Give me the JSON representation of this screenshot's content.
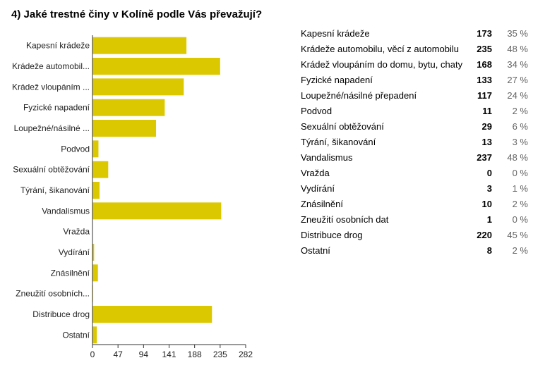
{
  "question": {
    "title": "4) Jaké trestné činy v Kolíně podle Vás převažují?"
  },
  "colors": {
    "bar": "#dcc800",
    "axis": "#333333",
    "text": "#222222",
    "muted": "#666666"
  },
  "chart_data": {
    "type": "bar",
    "orientation": "horizontal",
    "categories": [
      "Kapesní krádeže",
      "Krádeže automobil...",
      "Krádež vloupáním ...",
      "Fyzické napadení",
      "Loupežné/násilné ...",
      "Podvod",
      "Sexuální obtěžování",
      "Týrání, šikanování",
      "Vandalismus",
      "Vražda",
      "Vydírání",
      "Znásilnění",
      "Zneužití osobních...",
      "Distribuce drog",
      "Ostatní"
    ],
    "values": [
      173,
      235,
      168,
      133,
      117,
      11,
      29,
      13,
      237,
      0,
      3,
      10,
      1,
      220,
      8
    ],
    "xlim": [
      0,
      282
    ],
    "xticks": [
      0,
      47,
      94,
      141,
      188,
      235,
      282
    ],
    "grid": false,
    "legend": "none"
  },
  "summary": {
    "rows": [
      {
        "label": "Kapesní krádeže",
        "count": "173",
        "percent": "35 %"
      },
      {
        "label": "Krádeže automobilu, věcí z automobilu",
        "count": "235",
        "percent": "48 %"
      },
      {
        "label": "Krádež vloupáním do domu, bytu, chaty",
        "count": "168",
        "percent": "34 %"
      },
      {
        "label": "Fyzické napadení",
        "count": "133",
        "percent": "27 %"
      },
      {
        "label": "Loupežné/násilné přepadení",
        "count": "117",
        "percent": "24 %"
      },
      {
        "label": "Podvod",
        "count": "11",
        "percent": "2 %"
      },
      {
        "label": "Sexuální obtěžování",
        "count": "29",
        "percent": "6 %"
      },
      {
        "label": "Týrání, šikanování",
        "count": "13",
        "percent": "3 %"
      },
      {
        "label": "Vandalismus",
        "count": "237",
        "percent": "48 %"
      },
      {
        "label": "Vražda",
        "count": "0",
        "percent": "0 %"
      },
      {
        "label": "Vydírání",
        "count": "3",
        "percent": "1 %"
      },
      {
        "label": "Znásilnění",
        "count": "10",
        "percent": "2 %"
      },
      {
        "label": "Zneužití osobních dat",
        "count": "1",
        "percent": "0 %"
      },
      {
        "label": "Distribuce drog",
        "count": "220",
        "percent": "45 %"
      },
      {
        "label": "Ostatní",
        "count": "8",
        "percent": "2 %"
      }
    ]
  }
}
